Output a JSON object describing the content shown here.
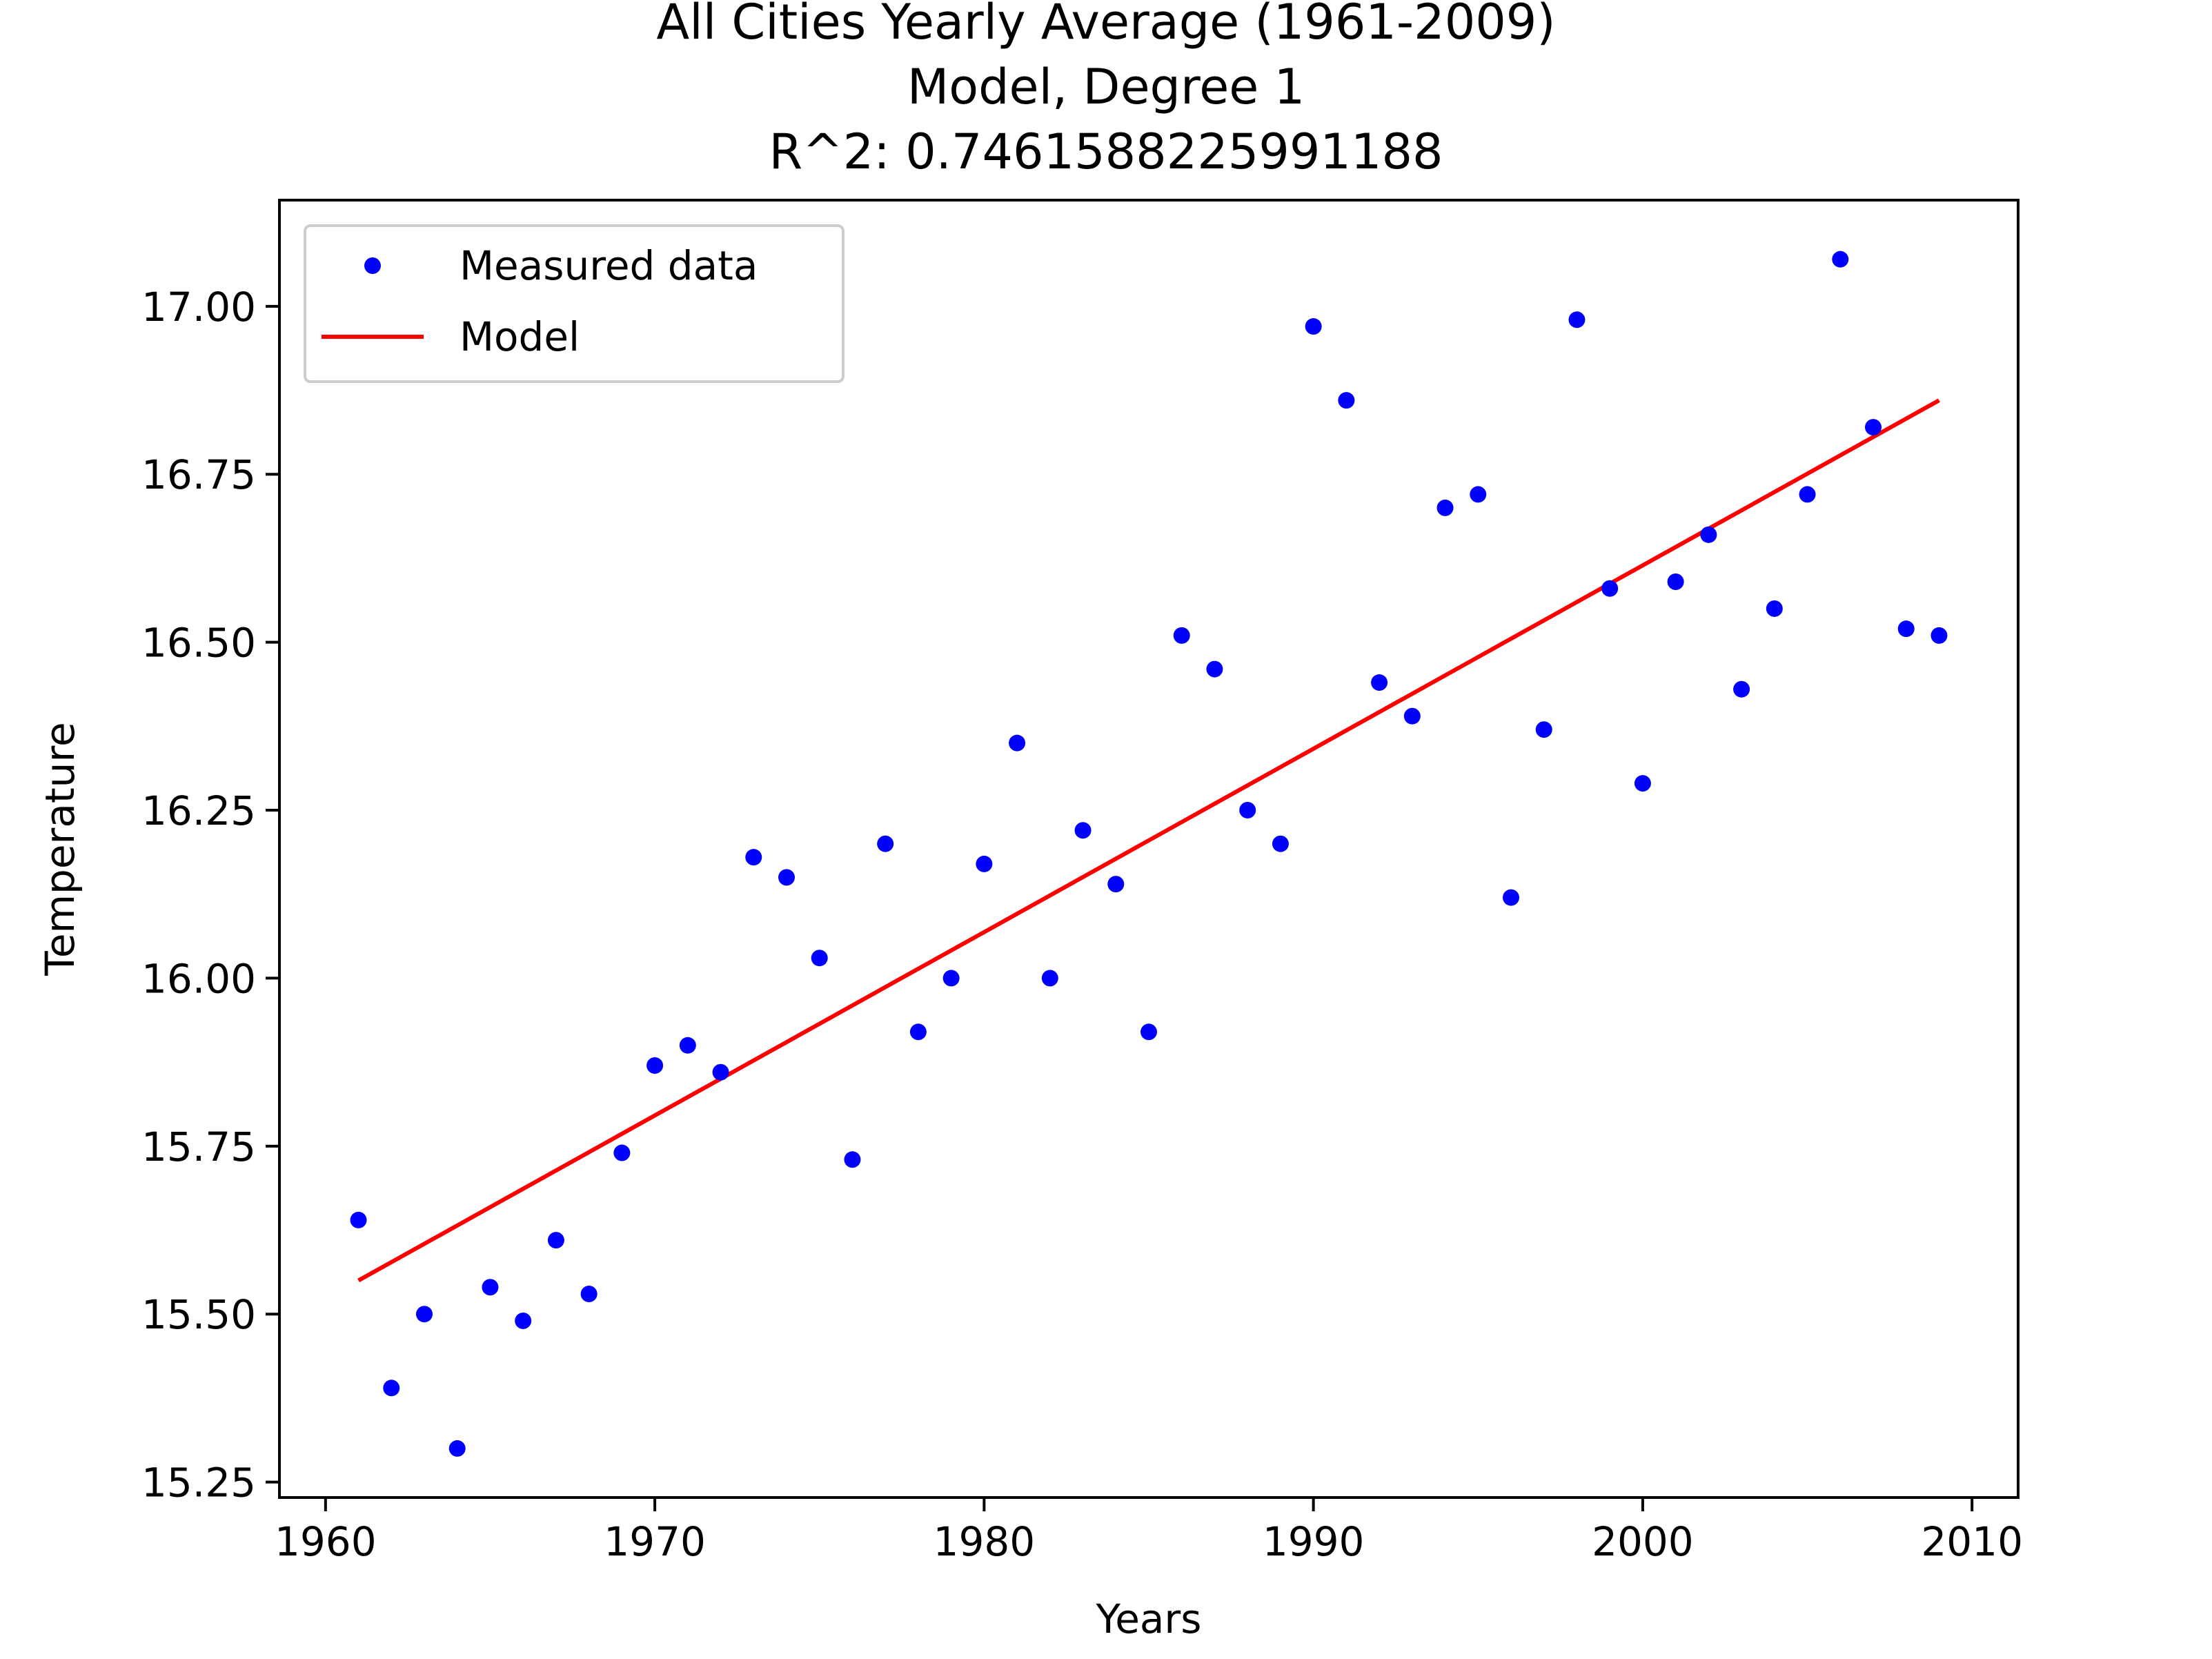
{
  "chart_data": {
    "type": "scatter",
    "title_lines": [
      "All Cities Yearly Average (1961-2009)",
      "Model, Degree 1",
      "R^2: 0.7461588225991188"
    ],
    "xlabel": "Years",
    "ylabel": "Temperature",
    "xlim": [
      1958.6,
      2011.4
    ],
    "ylim": [
      15.227,
      17.158
    ],
    "x_ticks": [
      1960,
      1970,
      1980,
      1990,
      2000,
      2010
    ],
    "x_tick_labels": [
      "1960",
      "1970",
      "1980",
      "1990",
      "2000",
      "2010"
    ],
    "y_ticks": [
      15.25,
      15.5,
      15.75,
      16.0,
      16.25,
      16.5,
      16.75,
      17.0
    ],
    "y_tick_labels": [
      "15.25",
      "15.50",
      "15.75",
      "16.00",
      "16.25",
      "16.50",
      "16.75",
      "17.00"
    ],
    "grid": false,
    "legend": {
      "placement": "top-left",
      "entries": [
        "Measured data",
        "Model"
      ]
    },
    "series": [
      {
        "name": "Measured data",
        "kind": "scatter",
        "color": "#0000ff",
        "x": [
          1961,
          1962,
          1963,
          1964,
          1965,
          1966,
          1967,
          1968,
          1969,
          1970,
          1971,
          1972,
          1973,
          1974,
          1975,
          1976,
          1977,
          1978,
          1979,
          1980,
          1981,
          1982,
          1983,
          1984,
          1985,
          1986,
          1987,
          1988,
          1989,
          1990,
          1991,
          1992,
          1993,
          1994,
          1995,
          1996,
          1997,
          1998,
          1999,
          2000,
          2001,
          2002,
          2003,
          2004,
          2005,
          2006,
          2007,
          2008,
          2009
        ],
        "y": [
          15.64,
          15.39,
          15.5,
          15.3,
          15.54,
          15.49,
          15.61,
          15.53,
          15.74,
          15.87,
          15.9,
          15.86,
          16.18,
          16.15,
          16.03,
          15.73,
          16.2,
          15.92,
          16.0,
          16.17,
          16.35,
          16.0,
          16.22,
          16.14,
          15.92,
          16.51,
          16.46,
          16.25,
          16.2,
          16.97,
          16.86,
          16.44,
          16.39,
          16.7,
          16.72,
          16.12,
          16.37,
          16.98,
          16.58,
          16.29,
          16.59,
          16.66,
          16.43,
          16.55,
          16.72,
          17.07,
          16.82,
          16.52,
          16.51
        ]
      },
      {
        "name": "Model",
        "kind": "line",
        "color": "#ff0000",
        "x": [
          1961,
          2009
        ],
        "y": [
          15.55,
          16.86
        ]
      }
    ]
  }
}
